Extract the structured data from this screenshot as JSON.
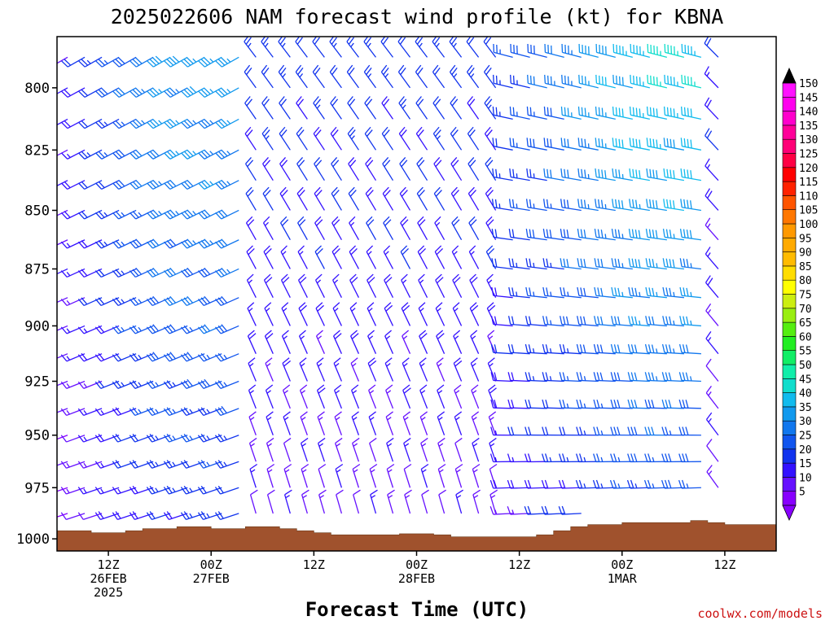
{
  "chart_data": {
    "type": "wind-profile",
    "title": "2025022606 NAM forecast wind profile (kt) for KBNA",
    "xlabel": "Forecast Time (UTC)",
    "ylabel": "",
    "y_scale": "log",
    "y_axis_inverted": true,
    "ylim": [
      780,
      1006
    ],
    "yticks": [
      800,
      825,
      850,
      875,
      900,
      925,
      950,
      975,
      1000
    ],
    "xlim": [
      3.5,
      45.5
    ],
    "xticks": [
      {
        "hour": 12,
        "labels": [
          "12Z",
          "26FEB",
          "2025"
        ]
      },
      {
        "hour": 24,
        "labels": [
          "00Z",
          "27FEB"
        ]
      },
      {
        "hour": 36,
        "labels": [
          "12Z"
        ]
      },
      {
        "hour": 48,
        "labels": [
          "00Z",
          "28FEB"
        ]
      },
      {
        "hour": 60,
        "labels": [
          "12Z"
        ]
      },
      {
        "hour": 72,
        "labels": [
          "00Z",
          "1MAR"
        ]
      },
      {
        "hour": 84,
        "labels": [
          "12Z"
        ]
      }
    ],
    "x_units": "hours after 2025-02-26 00Z",
    "levels": [
      788,
      800,
      812.5,
      825,
      837.5,
      850,
      862.5,
      875,
      887.5,
      900,
      912.5,
      925,
      937.5,
      950,
      962.5,
      975,
      987.5
    ],
    "wind_field_note": "Barbs in knots; direction and speed vary smoothly with time and height",
    "wind_regimes": [
      {
        "hours": [
          6,
          28
        ],
        "dir_deg": 250,
        "max_speed_kt": 40
      },
      {
        "hours": [
          28,
          58
        ],
        "dir_deg": 330,
        "max_speed_kt": 25
      },
      {
        "hours": [
          58,
          80
        ],
        "dir_deg": 280,
        "max_speed_kt": 48
      }
    ],
    "surface_pressure": {
      "hours": [
        0,
        8,
        10,
        14,
        16,
        20,
        22,
        24,
        26,
        28,
        30,
        32,
        34,
        36,
        38,
        40,
        44,
        46,
        48,
        50,
        52,
        54,
        56,
        58,
        60,
        62,
        64,
        66,
        68,
        70,
        72,
        74,
        76,
        78,
        80,
        82,
        84,
        86,
        88,
        90
      ],
      "values": [
        996,
        996,
        997,
        996,
        995,
        994,
        994,
        995,
        995,
        994,
        994,
        995,
        996,
        997,
        998,
        998,
        998,
        997.5,
        997.5,
        998,
        999,
        999,
        999,
        999,
        999,
        998,
        996,
        994,
        993,
        993,
        992,
        992,
        992,
        992,
        991,
        992,
        993,
        993,
        993,
        993
      ]
    },
    "colorbar": {
      "values": [
        5,
        10,
        15,
        20,
        25,
        30,
        35,
        40,
        45,
        50,
        55,
        60,
        65,
        70,
        75,
        80,
        85,
        90,
        95,
        100,
        105,
        110,
        115,
        120,
        125,
        130,
        135,
        140,
        145,
        150
      ],
      "colors": [
        "#8800ff",
        "#6611ff",
        "#3311ff",
        "#1133ee",
        "#1155ee",
        "#1177ee",
        "#1199ee",
        "#11bbee",
        "#11ddcc",
        "#11eeaa",
        "#11ee66",
        "#22ee22",
        "#55ee11",
        "#99ee11",
        "#ccee11",
        "#ffff00",
        "#ffdd00",
        "#ffbb00",
        "#ffaa00",
        "#ff9900",
        "#ff7700",
        "#ff5500",
        "#ff2200",
        "#ff0000",
        "#ff0044",
        "#ff0077",
        "#ff0099",
        "#ff00cc",
        "#ff00ee",
        "#ff11ff"
      ]
    },
    "credit": "coolwx.com/models"
  }
}
